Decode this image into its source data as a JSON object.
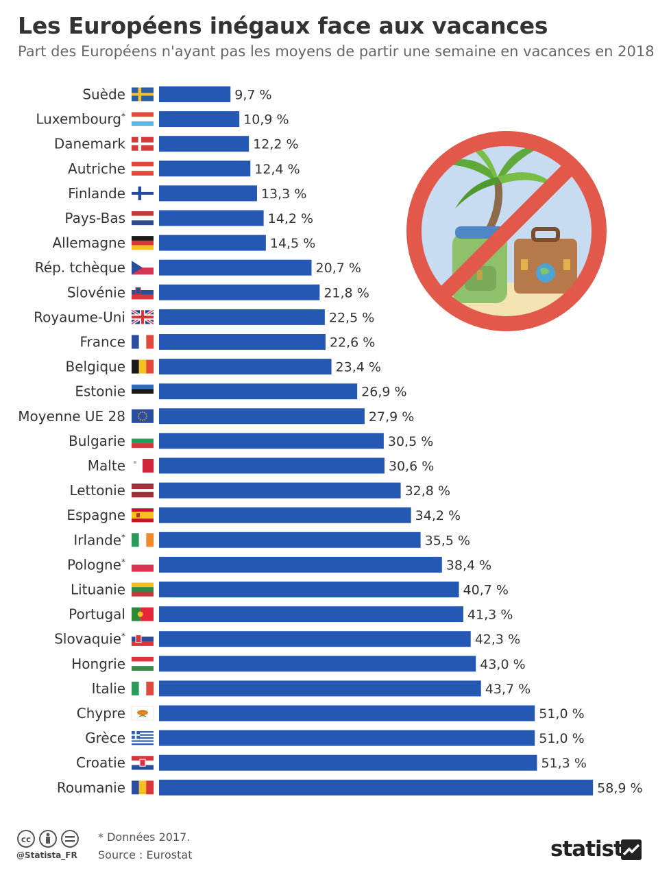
{
  "header": {
    "title": "Les Européens inégaux face aux vacances",
    "subtitle": "Part des Européens n'ayant pas les moyens de partir une semaine en vacances en 2018"
  },
  "colors": {
    "bar": "#2558b3",
    "text": "#333333"
  },
  "chart_data": {
    "type": "bar",
    "orientation": "horizontal",
    "title": "Les Européens inégaux face aux vacances",
    "subtitle": "Part des Européens n'ayant pas les moyens de partir une semaine en vacances en 2018",
    "unit": "%",
    "xlim": [
      0,
      60
    ],
    "grid": false,
    "categories": [
      "Suède",
      "Luxembourg",
      "Danemark",
      "Autriche",
      "Finlande",
      "Pays-Bas",
      "Allemagne",
      "Rép. tchèque",
      "Slovénie",
      "Royaume-Uni",
      "France",
      "Belgique",
      "Estonie",
      "Moyenne UE 28",
      "Bulgarie",
      "Malte",
      "Lettonie",
      "Espagne",
      "Irlande",
      "Pologne",
      "Lituanie",
      "Portugal",
      "Slovaquie",
      "Hongrie",
      "Italie",
      "Chypre",
      "Grèce",
      "Croatie",
      "Roumanie"
    ],
    "asterisk": [
      false,
      true,
      false,
      false,
      false,
      false,
      false,
      false,
      false,
      false,
      false,
      false,
      false,
      false,
      false,
      false,
      false,
      false,
      true,
      true,
      false,
      false,
      true,
      false,
      false,
      false,
      false,
      false,
      false
    ],
    "flags": [
      "se",
      "lu",
      "dk",
      "at",
      "fi",
      "nl",
      "de",
      "cz",
      "si",
      "gb",
      "fr",
      "be",
      "ee",
      "eu",
      "bg",
      "mt",
      "lv",
      "es",
      "ie",
      "pl",
      "lt",
      "pt",
      "sk",
      "hu",
      "it",
      "cy",
      "gr",
      "hr",
      "ro"
    ],
    "values": [
      9.7,
      10.9,
      12.2,
      12.4,
      13.3,
      14.2,
      14.5,
      20.7,
      21.8,
      22.5,
      22.6,
      23.4,
      26.9,
      27.9,
      30.5,
      30.6,
      32.8,
      34.2,
      35.5,
      38.4,
      40.7,
      41.3,
      42.3,
      43.0,
      43.7,
      51.0,
      51.0,
      51.3,
      58.9
    ],
    "value_labels": [
      "9,7 %",
      "10,9 %",
      "12,2 %",
      "12,4 %",
      "13,3 %",
      "14,2 %",
      "14,5 %",
      "20,7 %",
      "21,8 %",
      "22,5 %",
      "22,6 %",
      "23,4 %",
      "26,9 %",
      "27,9 %",
      "30,5 %",
      "30,6 %",
      "32,8 %",
      "34,2 %",
      "35,5 %",
      "38,4 %",
      "40,7 %",
      "41,3 %",
      "42,3 %",
      "43,0 %",
      "43,7 %",
      "51,0 %",
      "51,0 %",
      "51,3 %",
      "58,9 %"
    ]
  },
  "illustration": {
    "icon": "no-vacation-prohibition-icon"
  },
  "footer": {
    "license_icons": "cc-by-nd-icon",
    "handle": "@Statista_FR",
    "note": "* Données 2017.",
    "source": "Source : Eurostat",
    "brand": "statista",
    "brand_icon": "statista-logo-icon"
  }
}
